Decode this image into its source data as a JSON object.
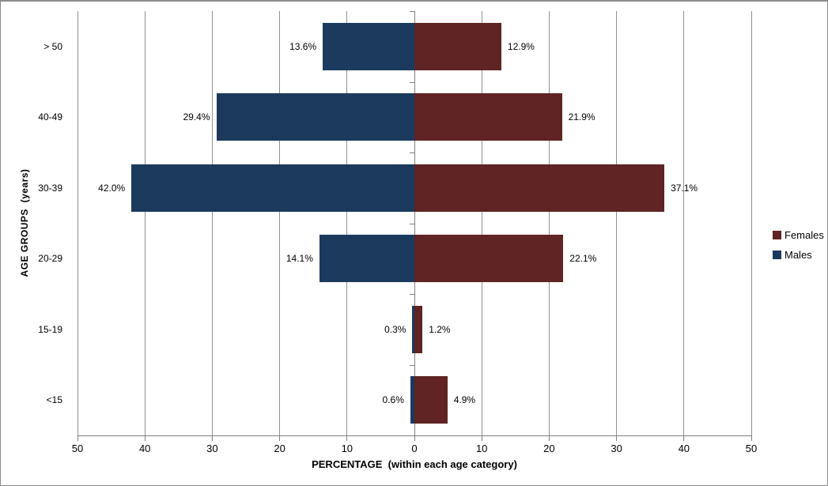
{
  "chart_data": {
    "type": "bar",
    "subtype": "population-pyramid",
    "orientation": "horizontal",
    "title": "",
    "xlabel": "PERCENTAGE  (within each age category)",
    "ylabel": "AGE GROUPS  (years)",
    "categories": [
      "> 50",
      "40-49",
      "30-39",
      "20-29",
      "15-19",
      "<15"
    ],
    "series": [
      {
        "name": "Males",
        "side": "left",
        "color": "#1B3A5E",
        "values": [
          13.6,
          29.4,
          42.0,
          14.1,
          0.3,
          0.6
        ],
        "labels": [
          "13.6%",
          "29.4%",
          "42.0%",
          "14.1%",
          "0.3%",
          "0.6%"
        ]
      },
      {
        "name": "Females",
        "side": "right",
        "color": "#5F2423",
        "values": [
          12.9,
          21.9,
          37.1,
          22.1,
          1.2,
          4.9
        ],
        "labels": [
          "12.9%",
          "21.9%",
          "37.1%",
          "22.1%",
          "1.2%",
          "4.9%"
        ]
      }
    ],
    "x_axis": {
      "max_each_side": 50,
      "tick_step": 10,
      "tick_labels": [
        "50",
        "40",
        "30",
        "20",
        "10",
        "0",
        "10",
        "20",
        "30",
        "40",
        "50"
      ]
    },
    "grid": true,
    "legend": {
      "position": "right",
      "entries": [
        {
          "label": "Females",
          "color": "#5F2423"
        },
        {
          "label": "Males",
          "color": "#1B3A5E"
        }
      ]
    }
  }
}
